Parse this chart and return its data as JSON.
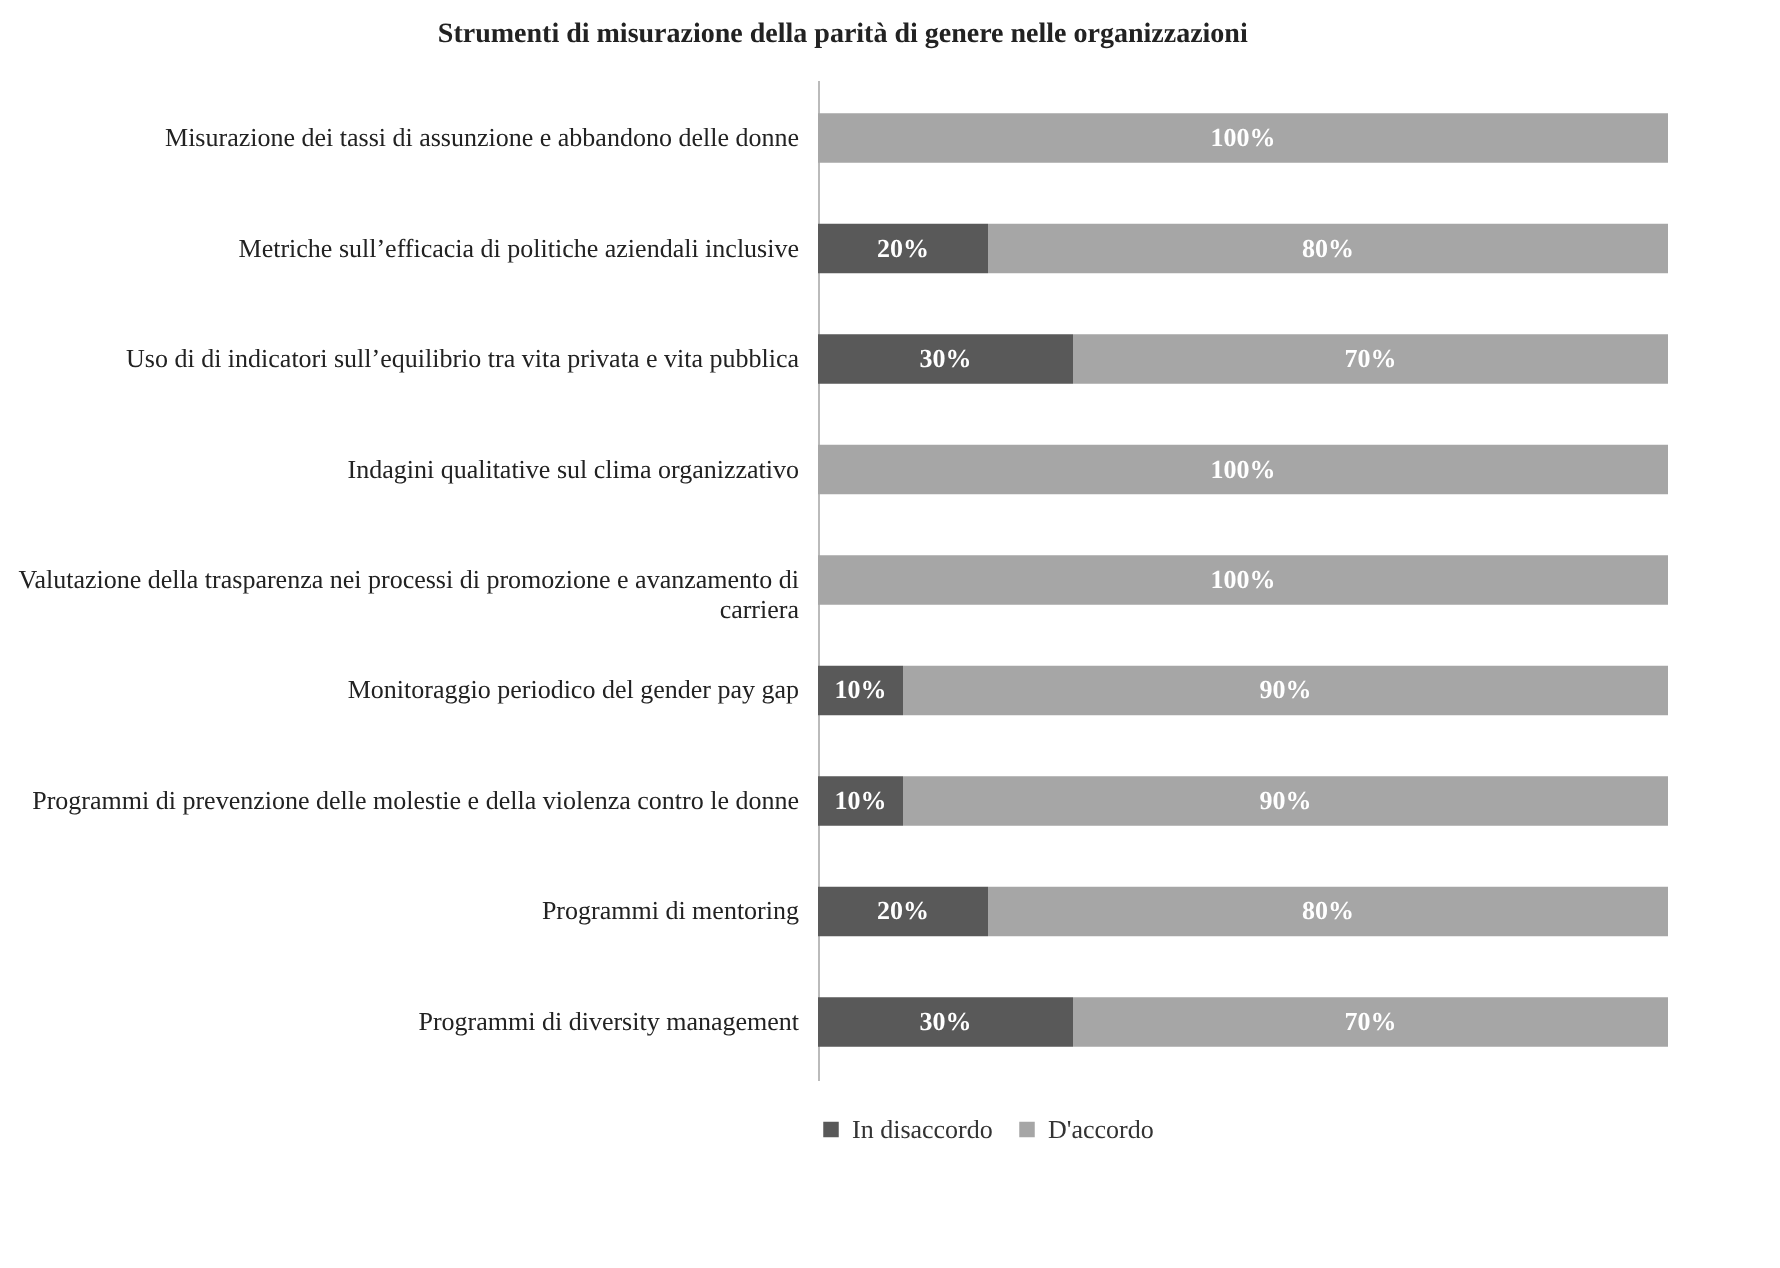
{
  "chart_data": {
    "type": "bar",
    "orientation": "horizontal",
    "stacked": true,
    "title": "Strumenti di misurazione della parità di genere nelle organizzazioni",
    "categories": [
      "Misurazione dei tassi di assunzione e abbandono delle donne",
      "Metriche sull’efficacia di politiche aziendali inclusive",
      "Uso di di indicatori sull’equilibrio tra vita privata e vita pubblica",
      "Indagini qualitative sul clima organizzativo",
      "Valutazione della trasparenza nei processi di promozione e avanzamento di carriera",
      "Monitoraggio periodico del gender pay gap",
      "Programmi di prevenzione delle molestie e della violenza contro le donne",
      "Programmi di mentoring",
      "Programmi di diversity management"
    ],
    "series": [
      {
        "name": "In disaccordo",
        "color": "#595959",
        "values": [
          0,
          20,
          30,
          0,
          0,
          10,
          10,
          20,
          30
        ],
        "value_labels": [
          null,
          "20%",
          "30%",
          null,
          null,
          "10%",
          "10%",
          "20%",
          "30%"
        ]
      },
      {
        "name": "D'accordo",
        "color": "#a6a6a6",
        "values": [
          100,
          80,
          70,
          100,
          100,
          90,
          90,
          80,
          70
        ],
        "value_labels": [
          "100%",
          "80%",
          "70%",
          "100%",
          "100%",
          "90%",
          "90%",
          "80%",
          "70%"
        ]
      }
    ],
    "xlim": [
      0,
      100
    ],
    "tick_labels": "y",
    "legend": "bottom"
  }
}
